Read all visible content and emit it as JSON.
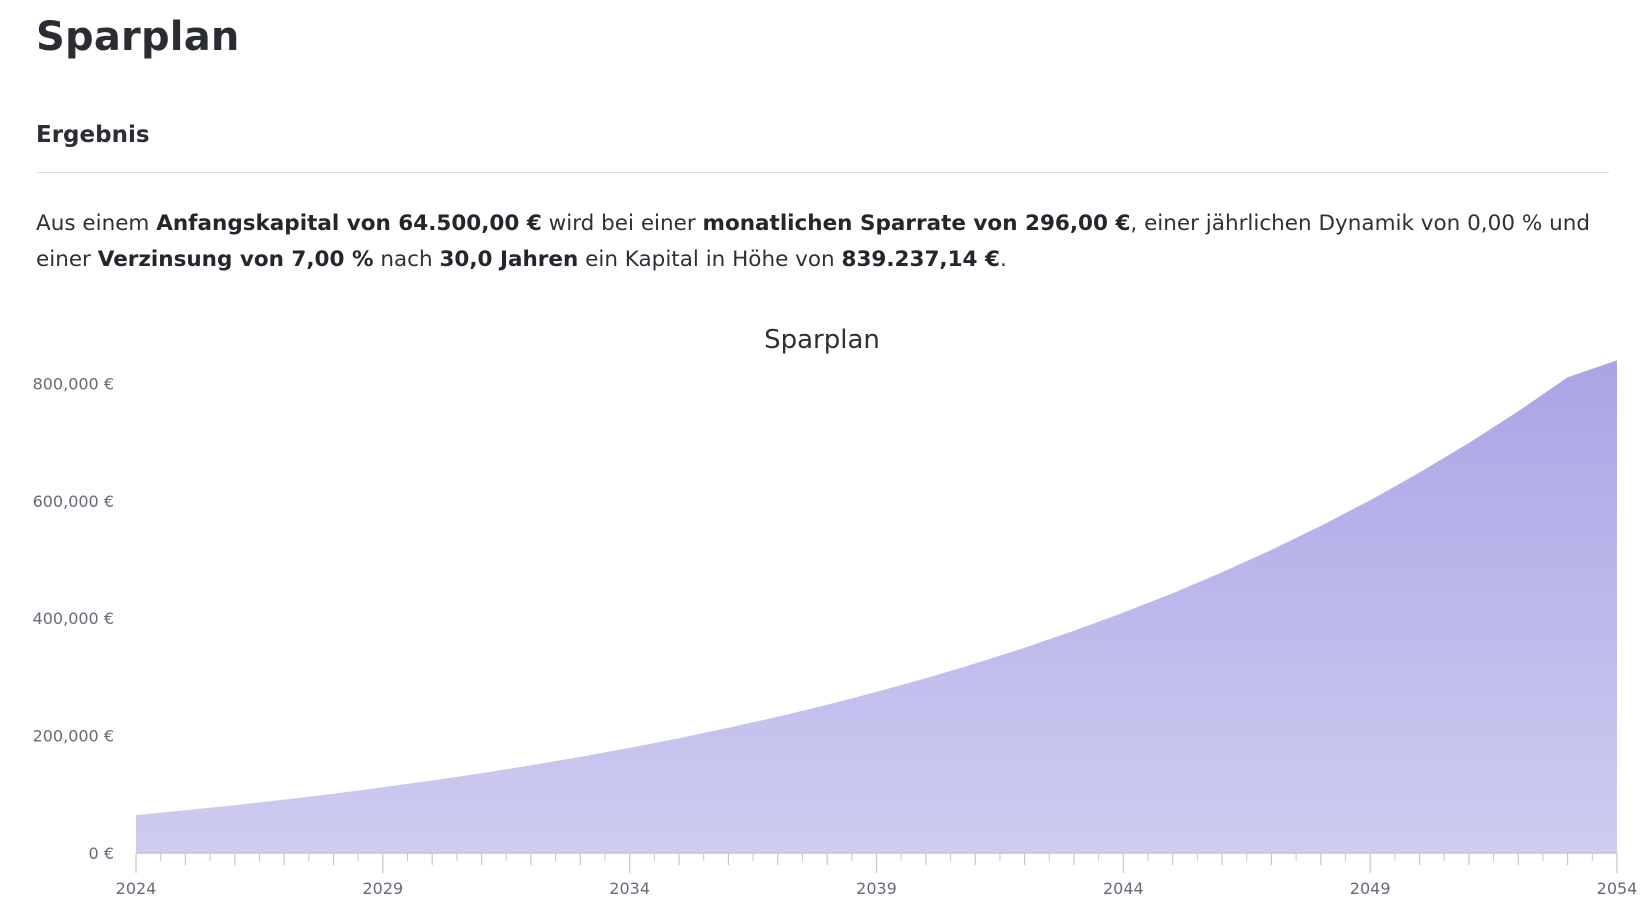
{
  "page": {
    "title": "Sparplan",
    "section_title": "Ergebnis"
  },
  "summary": {
    "t1": "Aus einem ",
    "b1": "Anfangskapital von 64.500,00 €",
    "t2": " wird bei einer ",
    "b2": "monatlichen Sparrate von 296,00 €",
    "t3": ", einer jährlichen Dynamik von 0,00 % und einer ",
    "b3": "Verzinsung von 7,00 %",
    "t4": " nach ",
    "b4": "30,0 Jahren",
    "t5": " ein Kapital in Höhe von ",
    "b5": "839.237,14 €",
    "t6": "."
  },
  "colors": {
    "area_top": "#a9a5e6",
    "area_bottom": "#cfccf1",
    "axis": "#c4c6cf"
  },
  "chart_data": {
    "type": "area",
    "title": "Sparplan",
    "xlabel": "",
    "ylabel": "",
    "x": [
      2024,
      2025,
      2026,
      2027,
      2028,
      2029,
      2030,
      2031,
      2032,
      2033,
      2034,
      2035,
      2036,
      2037,
      2038,
      2039,
      2040,
      2041,
      2042,
      2043,
      2044,
      2045,
      2046,
      2047,
      2048,
      2049,
      2050,
      2051,
      2052,
      2053,
      2054
    ],
    "series": [
      {
        "values": [
          64500,
          72704,
          81502,
          90935,
          101052,
          111900,
          123533,
          136008,
          149385,
          163730,
          179113,
          195608,
          213297,
          232265,
          252605,
          274416,
          297805,
          322885,
          349779,
          378618,
          409543,
          442705,
          478266,
          516397,
          557287,
          601133,
          648151,
          698568,
          752631,
          810605,
          839237
        ]
      }
    ],
    "xlim": [
      2024,
      2054
    ],
    "ylim": [
      0,
      840000
    ],
    "xticks": [
      "2024",
      "2029",
      "2034",
      "2039",
      "2044",
      "2049",
      "2054"
    ],
    "yticks": [
      "0 €",
      "200,000 €",
      "400,000 €",
      "600,000 €",
      "800,000 €"
    ],
    "grid": false,
    "legend": "none"
  }
}
